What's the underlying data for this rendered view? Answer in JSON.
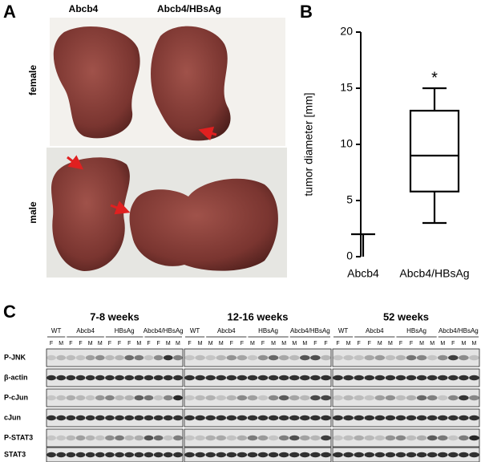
{
  "panel_labels": [
    "A",
    "B",
    "C"
  ],
  "panel_a": {
    "columns": [
      "Abcb4",
      "Abcb4/HBsAg"
    ],
    "rows": [
      "female",
      "male"
    ]
  },
  "chart_data": {
    "type": "box",
    "ylabel": "tumor diameter [mm]",
    "series": [
      {
        "name": "Abcb4",
        "min": 0,
        "q1": 0,
        "median": 0,
        "q3": 0,
        "max": 2
      },
      {
        "name": "Abcb4/HBsAg",
        "min": 3,
        "q1": 5.8,
        "median": 9,
        "q3": 13,
        "max": 15,
        "annotation": "*"
      }
    ],
    "ylim": [
      0,
      20
    ],
    "yticks": [
      0,
      5,
      10,
      15,
      20
    ],
    "color": "#000000"
  },
  "panel_c": {
    "genotypes": [
      "WT",
      "Abcb4",
      "HBsAg",
      "Abcb4/HBsAg"
    ],
    "rows": [
      "P-JNK",
      "β-actin",
      "P-cJun",
      "cJun",
      "P-STAT3",
      "STAT3"
    ],
    "blots": [
      {
        "title": "7-8 weeks",
        "lanes": [
          "F",
          "M",
          "F",
          "F",
          "M",
          "M",
          "F",
          "F",
          "F",
          "M",
          "F",
          "F",
          "M",
          "M"
        ]
      },
      {
        "title": "12-16 weeks",
        "lanes": [
          "F",
          "M",
          "M",
          "M",
          "F",
          "F",
          "M",
          "F",
          "M",
          "M",
          "M",
          "M",
          "F",
          "F"
        ]
      },
      {
        "title": "52 weeks",
        "lanes": [
          "F",
          "M",
          "F",
          "F",
          "M",
          "M",
          "F",
          "F",
          "M",
          "M",
          "M",
          "F",
          "M",
          "M"
        ]
      }
    ]
  }
}
